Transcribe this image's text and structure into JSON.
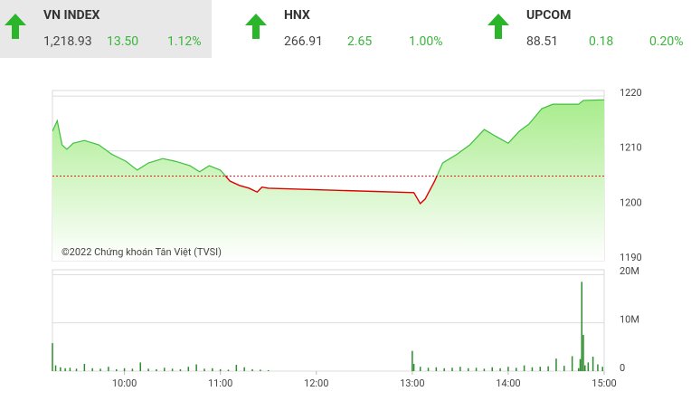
{
  "header": {
    "indices": [
      {
        "name": "VN INDEX",
        "value": "1,218.93",
        "change": "13.50",
        "percent": "1.12%"
      },
      {
        "name": "HNX",
        "value": "266.91",
        "change": "2.65",
        "percent": "1.00%"
      },
      {
        "name": "UPCOM",
        "value": "88.51",
        "change": "0.18",
        "percent": "0.20%"
      }
    ]
  },
  "chart_data": [
    {
      "type": "line",
      "annotation": "©2022 Chứng khoán Tân Việt (TVSI)",
      "x": [
        555,
        558,
        561,
        564,
        568,
        575,
        584,
        592,
        601,
        608,
        615,
        624,
        632,
        641,
        647,
        653,
        660,
        666,
        672,
        678,
        683,
        686,
        690,
        781,
        785,
        788,
        794,
        799,
        808,
        816,
        825,
        832,
        840,
        847,
        853,
        861,
        868,
        884,
        887,
        900
      ],
      "values": [
        1213.6,
        1215.5,
        1211.1,
        1210.3,
        1211.4,
        1211.9,
        1211.1,
        1209.4,
        1208.1,
        1206.5,
        1207.8,
        1208.6,
        1208.1,
        1207.3,
        1206.2,
        1207.3,
        1206.5,
        1204.5,
        1203.7,
        1203.2,
        1202.5,
        1203.4,
        1203.2,
        1202.4,
        1200.4,
        1201.2,
        1204.5,
        1207.8,
        1209.4,
        1211.1,
        1213.9,
        1212.7,
        1211.4,
        1213.6,
        1214.9,
        1217.7,
        1218.5,
        1218.5,
        1219.2,
        1219.3
      ],
      "reference": 1205.43,
      "color": "#3fbf3f",
      "below_color": "#e00000",
      "fill_color": "#a8ec8c",
      "xlim": [
        555,
        900
      ],
      "ylim": [
        1190,
        1221
      ],
      "yticks": [
        1190,
        1200,
        1210,
        1220
      ],
      "grid": true
    },
    {
      "type": "bar",
      "x": [
        555,
        557,
        560,
        563,
        566,
        570,
        575,
        580,
        585,
        590,
        595,
        600,
        605,
        610,
        615,
        620,
        625,
        630,
        635,
        640,
        645,
        650,
        655,
        660,
        665,
        670,
        675,
        680,
        685,
        690,
        780,
        781,
        785,
        790,
        795,
        800,
        805,
        810,
        815,
        820,
        825,
        830,
        835,
        840,
        845,
        850,
        855,
        860,
        865,
        870,
        875,
        880,
        884,
        885,
        886,
        887,
        888,
        890,
        893,
        896,
        899
      ],
      "values": [
        5800000,
        1200000,
        800000,
        600000,
        700000,
        500000,
        1500000,
        600000,
        500000,
        900000,
        400000,
        600000,
        500000,
        1800000,
        500000,
        400000,
        700000,
        500000,
        400000,
        900000,
        1400000,
        500000,
        600000,
        400000,
        300000,
        1300000,
        800000,
        400000,
        300000,
        200000,
        4200000,
        1500000,
        900000,
        700000,
        800000,
        600000,
        700000,
        900000,
        600000,
        700000,
        500000,
        800000,
        600000,
        900000,
        700000,
        1200000,
        800000,
        900000,
        1000000,
        2600000,
        1100000,
        3100000,
        600000,
        2500000,
        18500000,
        7500000,
        1200000,
        1800000,
        3000000,
        1400000,
        900000
      ],
      "color": "#2e8b2e",
      "xlim": [
        555,
        900
      ],
      "ylim": [
        0,
        21000000
      ],
      "yticks": [
        0,
        {
          "value": 10000000,
          "label": "10M"
        },
        {
          "value": 20000000,
          "label": "20M"
        }
      ],
      "xticks": [
        {
          "value": 600,
          "label": "10:00"
        },
        {
          "value": 660,
          "label": "11:00"
        },
        {
          "value": 720,
          "label": "12:00"
        },
        {
          "value": 780,
          "label": "13:00"
        },
        {
          "value": 840,
          "label": "14:00"
        },
        {
          "value": 900,
          "label": "15:00"
        }
      ],
      "grid": true
    }
  ]
}
